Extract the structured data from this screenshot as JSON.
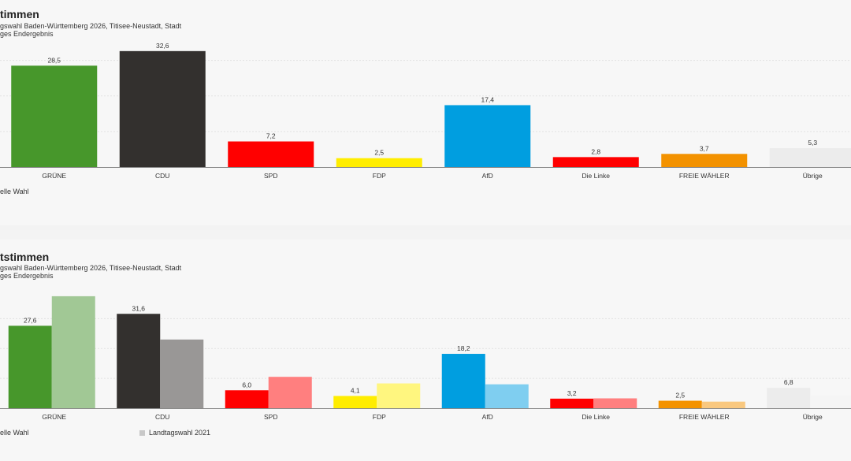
{
  "charts": [
    {
      "title": "timmen",
      "subtitle_line1": "gswahl Baden-Württemberg 2026, Titisee-Neustadt, Stadt",
      "subtitle_line2": "ges Endergebnis",
      "legend_current": "elle Wahl"
    },
    {
      "title": "tstimmen",
      "subtitle_line1": "gswahl Baden-Württemberg 2026, Titisee-Neustadt, Stadt",
      "subtitle_line2": "ges Endergebnis",
      "legend_current": "elle Wahl",
      "legend_previous": "Landtagswahl 2021"
    }
  ],
  "chart_data": [
    {
      "type": "bar",
      "categories": [
        "GRÜNE",
        "CDU",
        "SPD",
        "FDP",
        "AfD",
        "Die Linke",
        "FREIE WÄHLER",
        "Übrige"
      ],
      "series": [
        {
          "values": [
            28.5,
            32.6,
            7.2,
            2.5,
            17.4,
            2.8,
            3.7,
            5.3
          ],
          "labels": [
            "28,5",
            "32,6",
            "7,2",
            "2,5",
            "17,4",
            "2,8",
            "3,7",
            "5,3"
          ]
        }
      ],
      "colors": [
        "#47972b",
        "#33302e",
        "#ff0000",
        "#ffed00",
        "#009ee0",
        "#ff0000",
        "#f39200",
        "#ececec"
      ],
      "ylim": [
        0,
        35
      ],
      "grid": true
    },
    {
      "type": "bar",
      "categories": [
        "GRÜNE",
        "CDU",
        "SPD",
        "FDP",
        "AfD",
        "Die Linke",
        "FREIE WÄHLER",
        "Übrige"
      ],
      "series": [
        {
          "values": [
            27.6,
            31.6,
            6.0,
            4.1,
            18.2,
            3.2,
            2.5,
            6.8
          ],
          "labels": [
            "27,6",
            "31,6",
            "6,0",
            "4,1",
            "18,2",
            "3,2",
            "2,5",
            "6,8"
          ]
        },
        {
          "name": "Landtagswahl 2021",
          "values": [
            37.5,
            23.0,
            10.5,
            8.3,
            8.0,
            3.3,
            2.2,
            4.2
          ]
        }
      ],
      "colors": [
        "#47972b",
        "#33302e",
        "#ff0000",
        "#ffed00",
        "#009ee0",
        "#ff0000",
        "#f39200",
        "#ececec"
      ],
      "previous_colors": [
        "#a1c895",
        "#999796",
        "#ff7f7f",
        "#fff67f",
        "#7fcef0",
        "#ff7f7f",
        "#f9c87f",
        "#f5f5f5"
      ],
      "ylim": [
        0,
        38
      ],
      "grid": true
    }
  ]
}
